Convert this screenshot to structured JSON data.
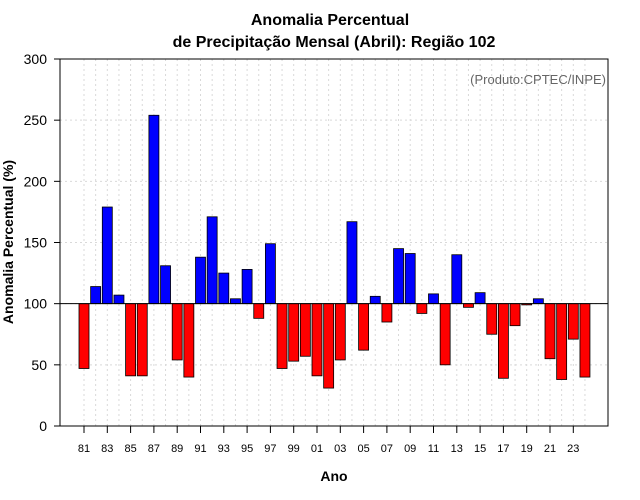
{
  "chart_data": {
    "type": "bar",
    "title_lines": [
      "Anomalia Percentual",
      "de Precipitação Mensal (Abril): Região 102"
    ],
    "xlabel": "Ano",
    "ylabel": "Anomalia Percentual (%)",
    "credit": "(Produto:CPTEC/INPE)",
    "baseline": 100,
    "ylim": [
      0,
      300
    ],
    "yticks": [
      0,
      50,
      100,
      150,
      200,
      250,
      300
    ],
    "x_tick_labels": [
      "81",
      "83",
      "85",
      "87",
      "89",
      "91",
      "93",
      "95",
      "97",
      "99",
      "01",
      "03",
      "05",
      "07",
      "09",
      "11",
      "13",
      "15",
      "17",
      "19",
      "21",
      "23"
    ],
    "categories": [
      "1981",
      "1982",
      "1983",
      "1984",
      "1985",
      "1986",
      "1987",
      "1988",
      "1989",
      "1990",
      "1991",
      "1992",
      "1993",
      "1994",
      "1995",
      "1996",
      "1997",
      "1998",
      "1999",
      "2000",
      "2001",
      "2002",
      "2003",
      "2004",
      "2005",
      "2006",
      "2007",
      "2008",
      "2009",
      "2010",
      "2011",
      "2012",
      "2013",
      "2014",
      "2015",
      "2016",
      "2017",
      "2018",
      "2019",
      "2020",
      "2021",
      "2022",
      "2023",
      "2024"
    ],
    "values": [
      47,
      114,
      179,
      107,
      41,
      41,
      254,
      131,
      54,
      40,
      138,
      171,
      125,
      104,
      128,
      88,
      149,
      47,
      53,
      57,
      41,
      31,
      54,
      167,
      62,
      106,
      85,
      145,
      141,
      92,
      108,
      50,
      140,
      97,
      109,
      75,
      39,
      82,
      99,
      104,
      55,
      38,
      71,
      40
    ],
    "colors": {
      "above": "#0000ff",
      "below": "#ff0000",
      "baseline": "#000000",
      "grid": "#d9d9d9"
    },
    "grid": true
  }
}
